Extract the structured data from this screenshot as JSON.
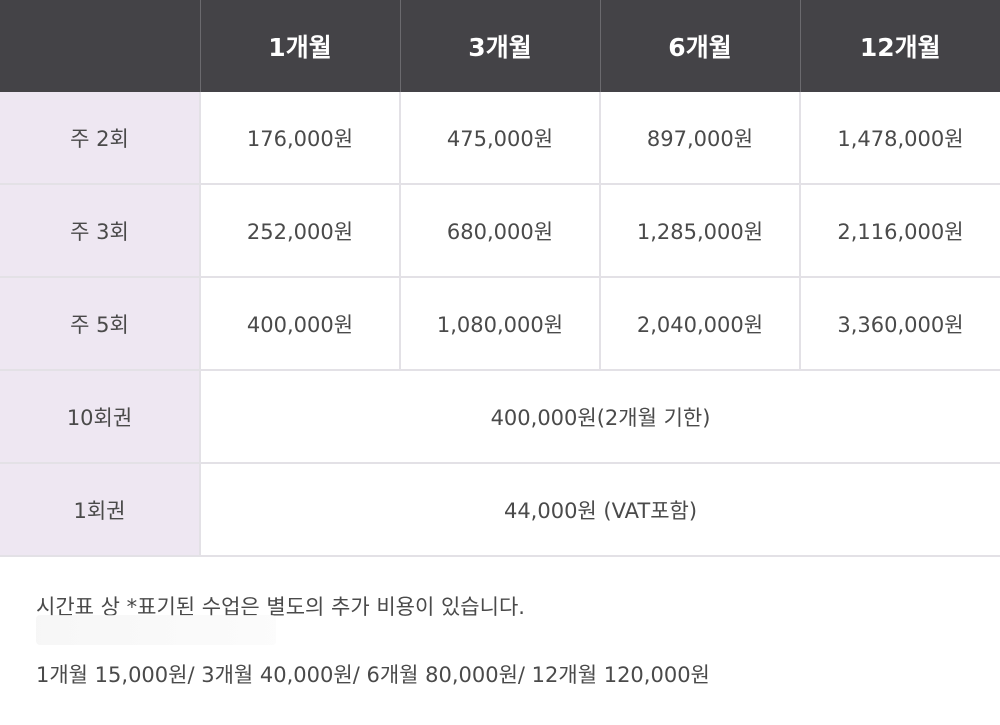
{
  "table": {
    "headers": [
      "",
      "1개월",
      "3개월",
      "6개월",
      "12개월"
    ],
    "rows": [
      {
        "label": "주 2회",
        "values": [
          "176,000원",
          "475,000원",
          "897,000원",
          "1,478,000원"
        ]
      },
      {
        "label": "주 3회",
        "values": [
          "252,000원",
          "680,000원",
          "1,285,000원",
          "2,116,000원"
        ]
      },
      {
        "label": "주 5회",
        "values": [
          "400,000원",
          "1,080,000원",
          "2,040,000원",
          "3,360,000원"
        ]
      }
    ],
    "passes": [
      {
        "label": "10회권",
        "value": "400,000원(2개월 기한)"
      },
      {
        "label": "1회권",
        "value": "44,000원 (VAT포함)"
      }
    ]
  },
  "notes": {
    "line1": "시간표 상 *표기된 수업은 별도의 추가 비용이 있습니다.",
    "line2": "1개월 15,000원/ 3개월 40,000원/ 6개월 80,000원/ 12개월 120,000원"
  }
}
